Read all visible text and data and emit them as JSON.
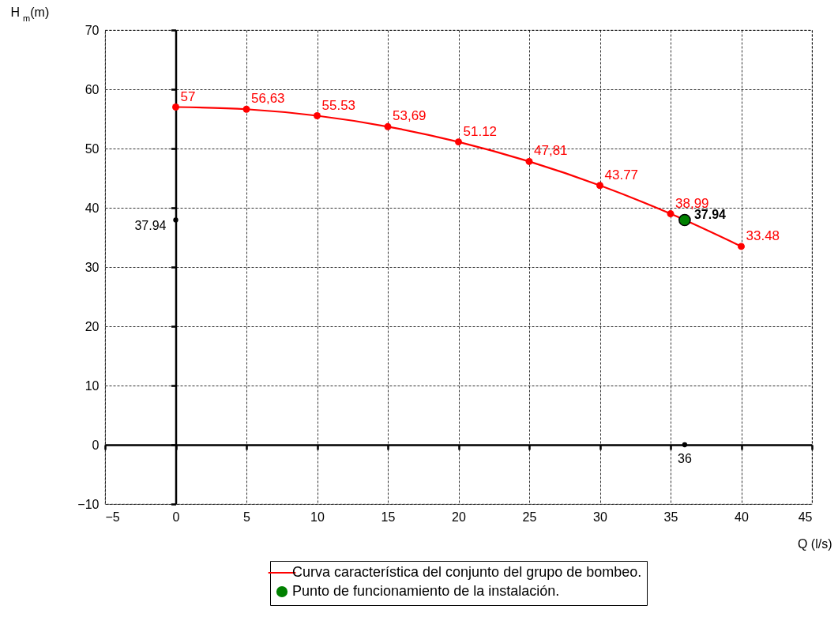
{
  "chart_data": {
    "type": "line",
    "xlabel": "Q (l/s)",
    "ylabel": "H$_{m}$(m)",
    "xlim": [
      -5,
      45
    ],
    "ylim": [
      -10,
      70
    ],
    "xticks": [
      -5,
      0,
      5,
      10,
      15,
      20,
      25,
      30,
      35,
      40,
      45
    ],
    "yticks": [
      -10,
      0,
      10,
      20,
      30,
      40,
      50,
      60,
      70
    ],
    "grid": true,
    "legend": "bottom",
    "series": [
      {
        "name": "Curva característica del conjunto del grupo de bombeo.",
        "color": "#ff0000",
        "marker": "circle",
        "x": [
          0,
          5,
          10,
          15,
          20,
          25,
          30,
          35,
          40
        ],
        "values": [
          57,
          56.63,
          55.53,
          53.69,
          51.12,
          47.81,
          43.77,
          38.99,
          33.48
        ],
        "value_labels": [
          "57",
          "56,63",
          "55.53",
          "53,69",
          "51.12",
          "47,81",
          "43.77",
          "38,99",
          "33.48"
        ]
      },
      {
        "name": "Punto de funcionamiento de la instalación.",
        "type": "scatter",
        "color": "#008000",
        "marker": "circle",
        "x": [
          36
        ],
        "values": [
          37.94
        ],
        "value_labels": [
          "37.94"
        ]
      },
      {
        "type": "scatter",
        "color": "#000000",
        "marker": "circle",
        "x": [
          0,
          36
        ],
        "values": [
          37.94,
          0
        ],
        "value_labels": [
          "37.94",
          null
        ]
      }
    ],
    "annotations": [
      {
        "text": "36",
        "x": 36,
        "y": 0
      }
    ]
  }
}
